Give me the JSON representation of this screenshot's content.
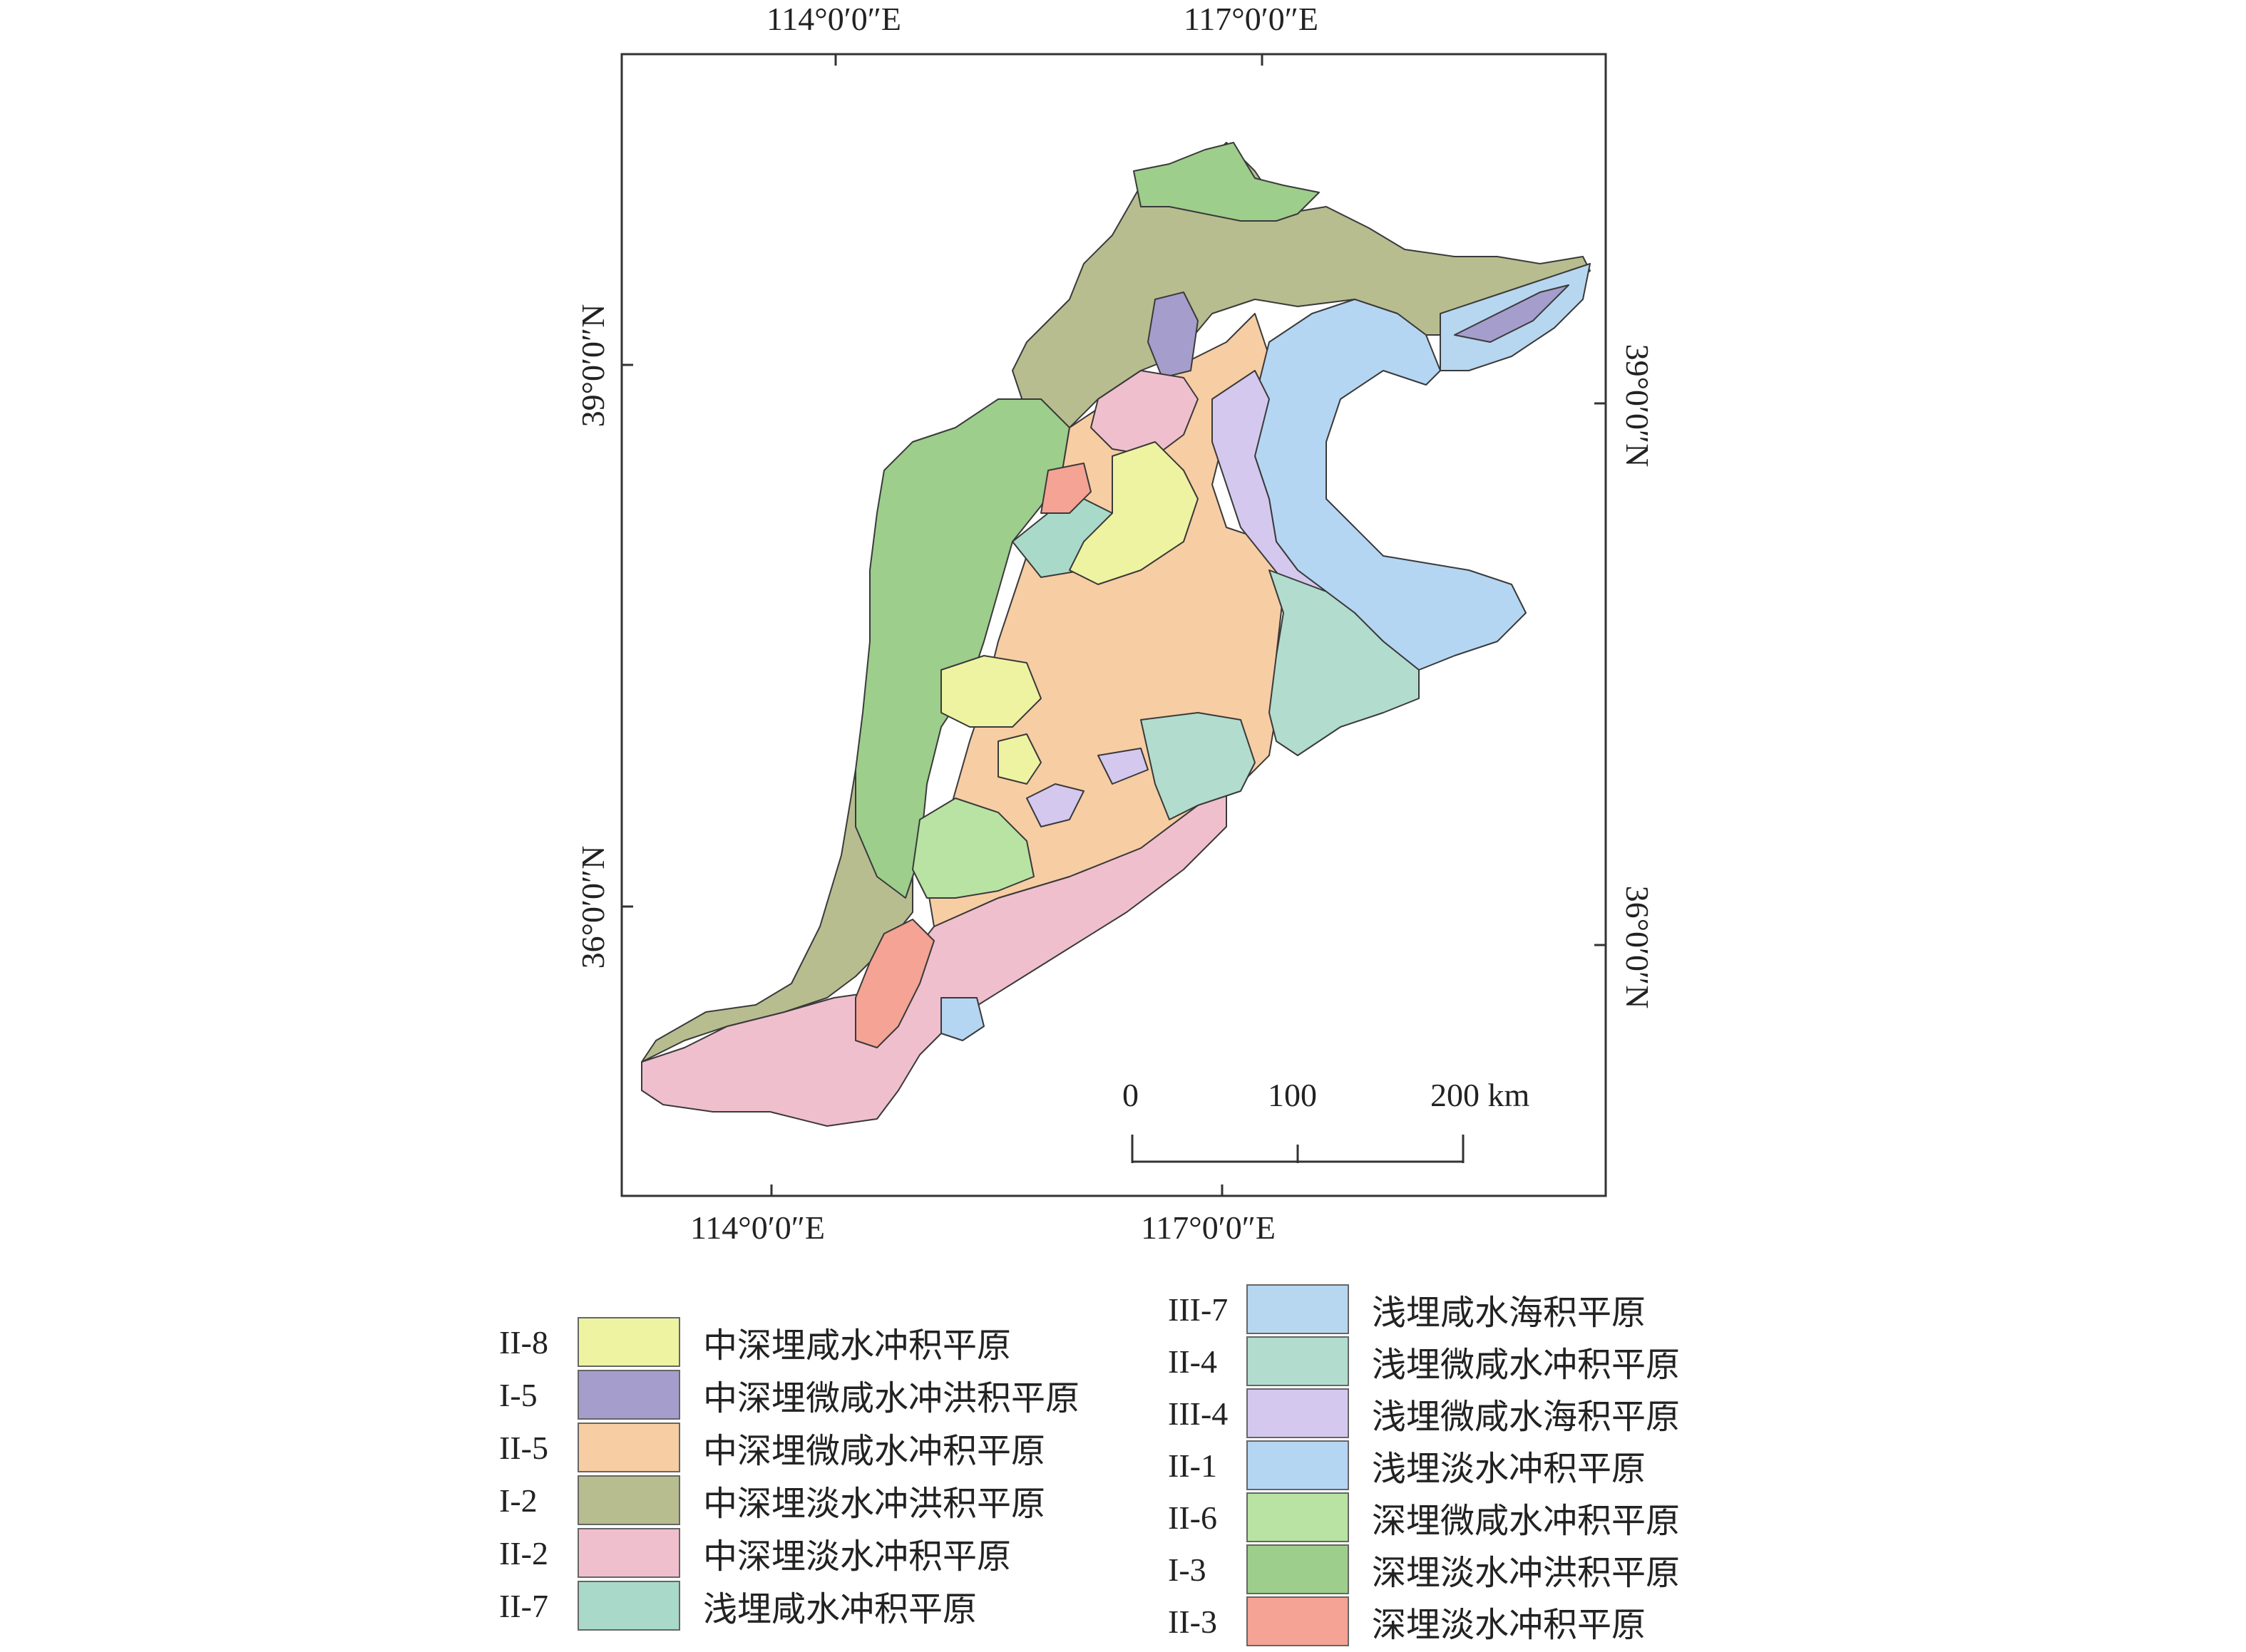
{
  "graticule": {
    "top": [
      "114°0′0″E",
      "117°0′0″E"
    ],
    "bottom": [
      "114°0′0″E",
      "117°0′0″E"
    ],
    "left": [
      "39°0′0″N",
      "36°0′0″N"
    ],
    "right": [
      "39°0′0″N",
      "36°0′0″N"
    ]
  },
  "scale_bar": {
    "labels": [
      "0",
      "100",
      "200 km"
    ]
  },
  "legend": [
    {
      "code": "II-8",
      "label": "中深埋咸水冲积平原",
      "color": "#eef3a1"
    },
    {
      "code": "I-5",
      "label": "中深埋微咸水冲洪积平原",
      "color": "#a59dcb"
    },
    {
      "code": "II-5",
      "label": "中深埋微咸水冲积平原",
      "color": "#f7cda4"
    },
    {
      "code": "I-2",
      "label": "中深埋淡水冲洪积平原",
      "color": "#b8bd90"
    },
    {
      "code": "II-2",
      "label": "中深埋淡水冲积平原",
      "color": "#f0bfce"
    },
    {
      "code": "II-7",
      "label": "浅埋咸水冲积平原",
      "color": "#a9dac9"
    },
    {
      "code": "III-7",
      "label": "浅埋咸水海积平原",
      "color": "#b7d6f0"
    },
    {
      "code": "II-4",
      "label": "浅埋微咸水冲积平原",
      "color": "#b2dcce"
    },
    {
      "code": "III-4",
      "label": "浅埋微咸水海积平原",
      "color": "#d5c8ef"
    },
    {
      "code": "II-1",
      "label": "浅埋淡水冲积平原",
      "color": "#b5d6f2"
    },
    {
      "code": "II-6",
      "label": "深埋微咸水冲积平原",
      "color": "#b8e3a3"
    },
    {
      "code": "I-3",
      "label": "深埋淡水冲洪积平原",
      "color": "#9dce8c"
    },
    {
      "code": "II-3",
      "label": "深埋淡水冲积平原",
      "color": "#f4a394"
    }
  ]
}
